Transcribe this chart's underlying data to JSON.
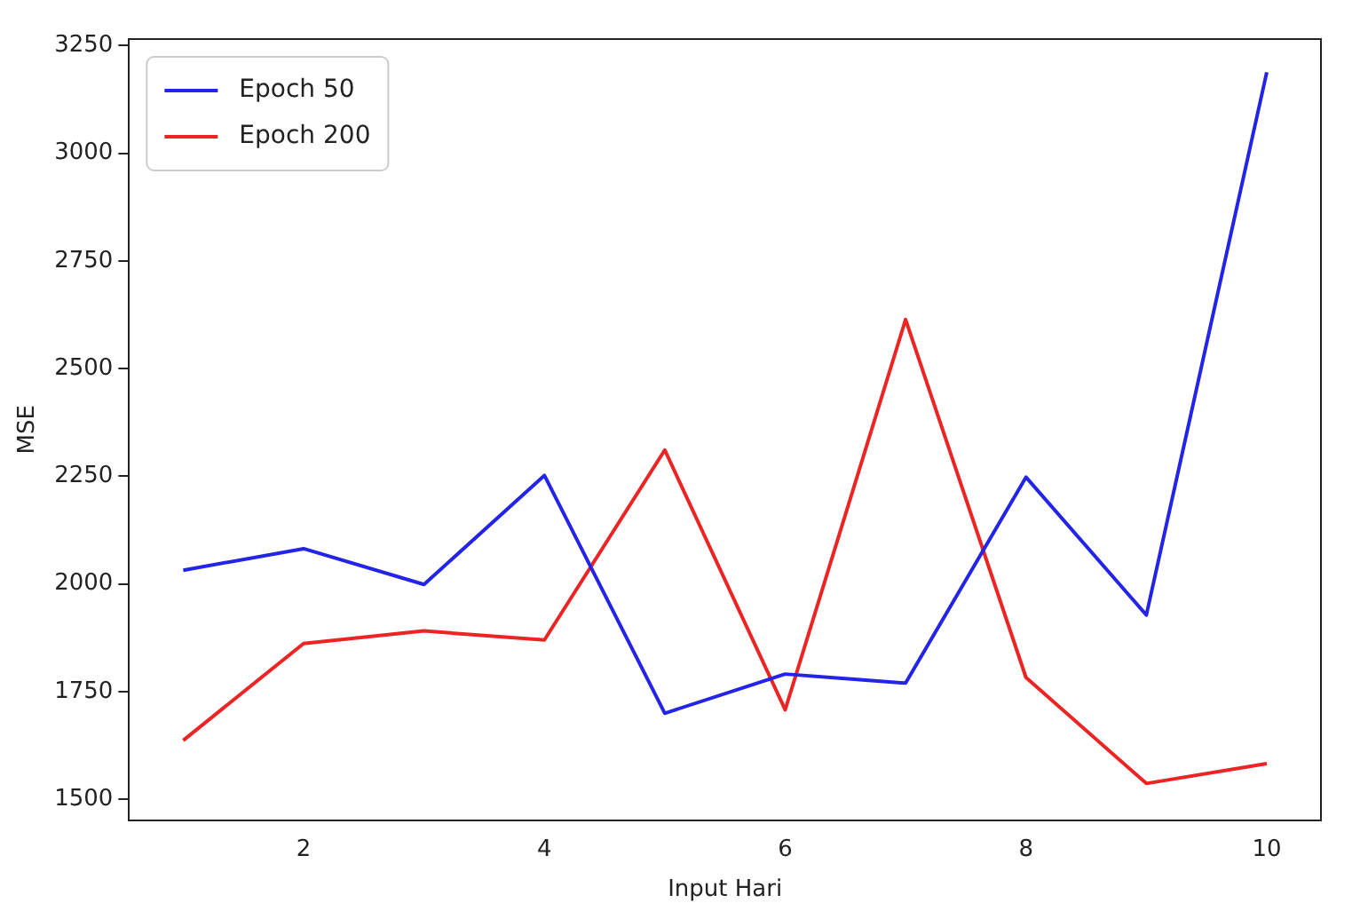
{
  "chart_data": {
    "type": "line",
    "xlabel": "Input Hari",
    "ylabel": "MSE",
    "x": [
      1,
      2,
      3,
      4,
      5,
      6,
      7,
      8,
      9,
      10
    ],
    "series": [
      {
        "name": "Epoch 50",
        "color": "#2424e8",
        "values": [
          2032,
          2082,
          1999,
          2252,
          1700,
          1791,
          1770,
          2248,
          1928,
          3188
        ]
      },
      {
        "name": "Epoch 200",
        "color": "#ec2424",
        "values": [
          1637,
          1862,
          1891,
          1870,
          2311,
          1708,
          2614,
          1783,
          1537,
          1583
        ]
      }
    ],
    "xlim": [
      0.55,
      10.45
    ],
    "xticks": [
      2,
      4,
      6,
      8,
      10
    ],
    "ylim": [
      1452,
      3265
    ],
    "yticks": [
      1500,
      1750,
      2000,
      2250,
      2500,
      2750,
      3000,
      3250
    ],
    "grid": false,
    "legend": "top left",
    "marker": "none",
    "line_style": "solid"
  }
}
